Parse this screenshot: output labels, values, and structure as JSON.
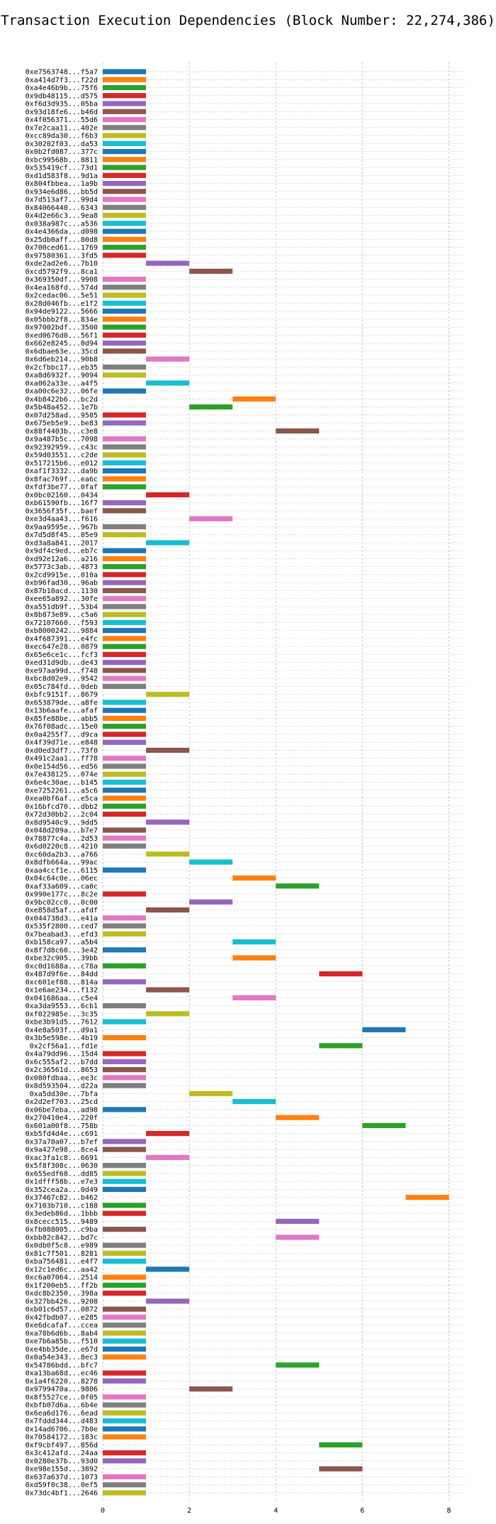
{
  "chart_data": {
    "type": "bar",
    "orientation": "horizontal-gantt",
    "title": "Transaction Execution Dependencies (Block Number: 22,274,386)",
    "xlabel": "",
    "ylabel": "",
    "xlim": [
      0,
      8.4
    ],
    "xticks": [
      0,
      2,
      4,
      6,
      8
    ],
    "grid": true,
    "palette": [
      "#1f77b4",
      "#ff7f0e",
      "#2ca02c",
      "#d62728",
      "#9467bd",
      "#8c564b",
      "#e377c2",
      "#7f7f7f",
      "#bcbd22",
      "#17becf"
    ],
    "transactions": [
      {
        "tx": "0xe7563748...f5a7",
        "start": 0
      },
      {
        "tx": "0xa414d7f3...f22d",
        "start": 0
      },
      {
        "tx": "0xa4e46b9b...75f6",
        "start": 0
      },
      {
        "tx": "0x9db48115...d575",
        "start": 0
      },
      {
        "tx": "0xf6d3d935...05ba",
        "start": 0
      },
      {
        "tx": "0x93d18fe6...b46d",
        "start": 0
      },
      {
        "tx": "0x4f056371...55d6",
        "start": 0
      },
      {
        "tx": "0x7e2caa11...402e",
        "start": 0
      },
      {
        "tx": "0xcc89da30...f6b3",
        "start": 0
      },
      {
        "tx": "0x30202f03...da53",
        "start": 0
      },
      {
        "tx": "0x0b2fd087...377c",
        "start": 0
      },
      {
        "tx": "0xbc99568b...8811",
        "start": 0
      },
      {
        "tx": "0x535419cf...73d1",
        "start": 0
      },
      {
        "tx": "0xd1d583f8...9d1a",
        "start": 0
      },
      {
        "tx": "0x804fbbea...1a9b",
        "start": 0
      },
      {
        "tx": "0x934e6d86...bb5d",
        "start": 0
      },
      {
        "tx": "0x7d513af7...99d4",
        "start": 0
      },
      {
        "tx": "0x84066440...6343",
        "start": 0
      },
      {
        "tx": "0x4d2e66c3...9ea8",
        "start": 0
      },
      {
        "tx": "0x038a987c...a536",
        "start": 0
      },
      {
        "tx": "0x4e4366da...d098",
        "start": 0
      },
      {
        "tx": "0x25db0aff...80d8",
        "start": 0
      },
      {
        "tx": "0x700ced61...1769",
        "start": 0
      },
      {
        "tx": "0x97580361...3fd5",
        "start": 0
      },
      {
        "tx": "0xde2ad2e6...7b10",
        "start": 1
      },
      {
        "tx": "0xcd5792f9...8ca1",
        "start": 2
      },
      {
        "tx": "0x369350df...9908",
        "start": 0
      },
      {
        "tx": "0x4ea168fd...574d",
        "start": 0
      },
      {
        "tx": "0x2cedac06...5e51",
        "start": 0
      },
      {
        "tx": "0x28d046fb...e1f2",
        "start": 0
      },
      {
        "tx": "0x94de9122...5666",
        "start": 0
      },
      {
        "tx": "0x05bbb2f8...834e",
        "start": 0
      },
      {
        "tx": "0x97002bdf...3500",
        "start": 0
      },
      {
        "tx": "0xed0676d0...56f1",
        "start": 0
      },
      {
        "tx": "0x662e8245...0d94",
        "start": 0
      },
      {
        "tx": "0x6dbae63e...35cd",
        "start": 0
      },
      {
        "tx": "0x6d6eb214...90b8",
        "start": 1
      },
      {
        "tx": "0x2cfbbc17...eb35",
        "start": 0
      },
      {
        "tx": "0xa8d6932f...9094",
        "start": 0
      },
      {
        "tx": "0xa062a33e...a4f5",
        "start": 1
      },
      {
        "tx": "0xa00c6e32...06fe",
        "start": 0
      },
      {
        "tx": "0x4b8422b6...bc2d",
        "start": 3
      },
      {
        "tx": "0x5b48a452...1e7b",
        "start": 2
      },
      {
        "tx": "0x07d258ad...9505",
        "start": 0
      },
      {
        "tx": "0x675eb5e9...be83",
        "start": 0
      },
      {
        "tx": "0x88f4403b...c3e8",
        "start": 4
      },
      {
        "tx": "0x9a487b5c...7098",
        "start": 0
      },
      {
        "tx": "0x92392959...c43c",
        "start": 0
      },
      {
        "tx": "0x59d03551...c2de",
        "start": 0
      },
      {
        "tx": "0x517215b6...e012",
        "start": 0
      },
      {
        "tx": "0xaf1f3332...da9b",
        "start": 0
      },
      {
        "tx": "0x8fac769f...ea6c",
        "start": 0
      },
      {
        "tx": "0xfdf3be77...0faf",
        "start": 0
      },
      {
        "tx": "0x0bc02160...0434",
        "start": 1
      },
      {
        "tx": "0xb61590fb...16f7",
        "start": 0
      },
      {
        "tx": "0x3656f35f...baef",
        "start": 0
      },
      {
        "tx": "0xe3d4aa43...f616",
        "start": 2
      },
      {
        "tx": "0x9aa9595e...967b",
        "start": 0
      },
      {
        "tx": "0x7d5d8f45...05e9",
        "start": 0
      },
      {
        "tx": "0xd3a8a841...2017",
        "start": 1
      },
      {
        "tx": "0x9df4c9ed...eb7c",
        "start": 0
      },
      {
        "tx": "0xd92e12a6...a216",
        "start": 0
      },
      {
        "tx": "0x5773c3ab...4873",
        "start": 0
      },
      {
        "tx": "0x2cd9915e...010a",
        "start": 0
      },
      {
        "tx": "0xb96fad30...96ab",
        "start": 0
      },
      {
        "tx": "0x87b10acd...1130",
        "start": 0
      },
      {
        "tx": "0xee65a892...30fe",
        "start": 0
      },
      {
        "tx": "0xa551db9f...53b4",
        "start": 0
      },
      {
        "tx": "0x8b873e89...c5a6",
        "start": 0
      },
      {
        "tx": "0x72107660...f593",
        "start": 0
      },
      {
        "tx": "0xb8000242...9884",
        "start": 0
      },
      {
        "tx": "0x4f687391...e4fc",
        "start": 0
      },
      {
        "tx": "0xec647e28...0879",
        "start": 0
      },
      {
        "tx": "0x65e6ce1c...fcf3",
        "start": 0
      },
      {
        "tx": "0xed31d9db...de43",
        "start": 0
      },
      {
        "tx": "0xe97aa99d...f748",
        "start": 0
      },
      {
        "tx": "0xbc8d02e9...9542",
        "start": 0
      },
      {
        "tx": "0x05c784fd...0deb",
        "start": 0
      },
      {
        "tx": "0xbfc9151f...8679",
        "start": 1
      },
      {
        "tx": "0x653879de...a8fe",
        "start": 0
      },
      {
        "tx": "0x13b6aafe...afaf",
        "start": 0
      },
      {
        "tx": "0x85fe88be...abb5",
        "start": 0
      },
      {
        "tx": "0x76f08adc...15e0",
        "start": 0
      },
      {
        "tx": "0x0a4255f7...d9ca",
        "start": 0
      },
      {
        "tx": "0x4f39d71e...e848",
        "start": 0
      },
      {
        "tx": "0xd0ed3df7...73f0",
        "start": 1
      },
      {
        "tx": "0x491c2aa1...ff78",
        "start": 0
      },
      {
        "tx": "0x0e154d56...ed56",
        "start": 0
      },
      {
        "tx": "0x7e438125...074e",
        "start": 0
      },
      {
        "tx": "0x6e4c30ae...b145",
        "start": 0
      },
      {
        "tx": "0xe7252261...a5c6",
        "start": 0
      },
      {
        "tx": "0xea0bf6af...e5ca",
        "start": 0
      },
      {
        "tx": "0x16bfcd70...dbb2",
        "start": 0
      },
      {
        "tx": "0x72d30bb2...2c04",
        "start": 0
      },
      {
        "tx": "0x8d9540c9...9dd5",
        "start": 1
      },
      {
        "tx": "0x048d209a...b7e7",
        "start": 0
      },
      {
        "tx": "0x78877c4a...2d53",
        "start": 0
      },
      {
        "tx": "0x6d0220c8...4210",
        "start": 0
      },
      {
        "tx": "0xc60da2b3...a766",
        "start": 1
      },
      {
        "tx": "0x8dfb664a...99ac",
        "start": 2
      },
      {
        "tx": "0xaa4ccf1e...6115",
        "start": 0
      },
      {
        "tx": "0x04c64c0e...06ec",
        "start": 3
      },
      {
        "tx": "0xaf33a609...ca0c",
        "start": 4
      },
      {
        "tx": "0x990e177c...8c2e",
        "start": 0
      },
      {
        "tx": "0x9bc02cc0...0c00",
        "start": 2
      },
      {
        "tx": "0xe858d5af...afdf",
        "start": 1
      },
      {
        "tx": "0x044738d3...e41a",
        "start": 0
      },
      {
        "tx": "0x535f2800...ced7",
        "start": 0
      },
      {
        "tx": "0x7beabad3...efd3",
        "start": 0
      },
      {
        "tx": "0xb158ca97...a5b4",
        "start": 3
      },
      {
        "tx": "0x8f7d8c60...3e42",
        "start": 0
      },
      {
        "tx": "0xbe32c905...39bb",
        "start": 3
      },
      {
        "tx": "0xc0d1688a...c78a",
        "start": 0
      },
      {
        "tx": "0x487d9f6e...84dd",
        "start": 5
      },
      {
        "tx": "0xc601ef88...814a",
        "start": 0
      },
      {
        "tx": "0x1e6ae234...f132",
        "start": 1
      },
      {
        "tx": "0x041686aa...c5e4",
        "start": 3
      },
      {
        "tx": "0xa3da9553...6cb1",
        "start": 0
      },
      {
        "tx": "0xf022985e...3c35",
        "start": 1
      },
      {
        "tx": "0xbe3b91d5...7612",
        "start": 0
      },
      {
        "tx": "0x4e8a503f...d9a1",
        "start": 6
      },
      {
        "tx": "0x3b5e598e...4b19",
        "start": 0
      },
      {
        "tx": "0x2cf56a1...fd1e",
        "start": 5
      },
      {
        "tx": "0x4a79dd96...15d4",
        "start": 0
      },
      {
        "tx": "0x6c555af2...b7dd",
        "start": 0
      },
      {
        "tx": "0x2c36561d...8653",
        "start": 0
      },
      {
        "tx": "0x080fdbaa...ee3c",
        "start": 0
      },
      {
        "tx": "0x8d593504...d22a",
        "start": 0
      },
      {
        "tx": "0xa5dd30e...7bfa",
        "start": 2
      },
      {
        "tx": "0x2d2ef703...25cd",
        "start": 3
      },
      {
        "tx": "0x06be7eba...ad98",
        "start": 0
      },
      {
        "tx": "0x270410e4...220f",
        "start": 4
      },
      {
        "tx": "0x601a00f8...758b",
        "start": 6
      },
      {
        "tx": "0xb5fd4d4e...c691",
        "start": 1
      },
      {
        "tx": "0x37a70a07...b7ef",
        "start": 0
      },
      {
        "tx": "0x9a427e98...8ce4",
        "start": 0
      },
      {
        "tx": "0xac3fa1c8...6691",
        "start": 1
      },
      {
        "tx": "0x5f8f308c...0630",
        "start": 0
      },
      {
        "tx": "0x655edf68...dd85",
        "start": 0
      },
      {
        "tx": "0x1dfff58b...e7e3",
        "start": 0
      },
      {
        "tx": "0x352cea2a...0d49",
        "start": 0
      },
      {
        "tx": "0x37467c82...b462",
        "start": 7
      },
      {
        "tx": "0x7103b710...c188",
        "start": 0
      },
      {
        "tx": "0x3edeb86d...1bbb",
        "start": 0
      },
      {
        "tx": "0x8cecc515...9489",
        "start": 4
      },
      {
        "tx": "0xfb088005...c9ba",
        "start": 0
      },
      {
        "tx": "0xbb82c842...bd7c",
        "start": 4
      },
      {
        "tx": "0x0db0f5c8...e989",
        "start": 0
      },
      {
        "tx": "0x81c7f501...8281",
        "start": 0
      },
      {
        "tx": "0xba756481...e4f7",
        "start": 0
      },
      {
        "tx": "0x12c1ed6c...aa42",
        "start": 1
      },
      {
        "tx": "0xc6a07064...2514",
        "start": 0
      },
      {
        "tx": "0x1f200eb5...ff2b",
        "start": 0
      },
      {
        "tx": "0xdc8b2350...398a",
        "start": 0
      },
      {
        "tx": "0x327bb426...9208",
        "start": 1
      },
      {
        "tx": "0xb01c6d57...0872",
        "start": 0
      },
      {
        "tx": "0x42fbdb07...e285",
        "start": 0
      },
      {
        "tx": "0xe6dcafaf...ccea",
        "start": 0
      },
      {
        "tx": "0xa78b6d6b...8ab4",
        "start": 0
      },
      {
        "tx": "0xe7b6a85b...f510",
        "start": 0
      },
      {
        "tx": "0xe4bb35de...e67d",
        "start": 0
      },
      {
        "tx": "0x0a54e343...8ec3",
        "start": 0
      },
      {
        "tx": "0x54786bdd...bfc7",
        "start": 4
      },
      {
        "tx": "0xa13ba68d...ec46",
        "start": 0
      },
      {
        "tx": "0x1a4f6220...8278",
        "start": 0
      },
      {
        "tx": "0x9799470a...9806",
        "start": 2
      },
      {
        "tx": "0x8f5527ce...0f05",
        "start": 0
      },
      {
        "tx": "0xbfb07d6a...6b4e",
        "start": 0
      },
      {
        "tx": "0x6ea6d176...6ead",
        "start": 0
      },
      {
        "tx": "0x7fddd344...d483",
        "start": 0
      },
      {
        "tx": "0x14ad6706...7b0e",
        "start": 0
      },
      {
        "tx": "0x70584172...183c",
        "start": 0
      },
      {
        "tx": "0xf9cbf497...856d",
        "start": 5
      },
      {
        "tx": "0x3c412afd...24aa",
        "start": 0
      },
      {
        "tx": "0x0280e37b...93d0",
        "start": 0
      },
      {
        "tx": "0xe98e155d...3892",
        "start": 5
      },
      {
        "tx": "0x637a637d...1073",
        "start": 0
      },
      {
        "tx": "0xd59f0c38...0ef5",
        "start": 0
      },
      {
        "tx": "0x73dc4bf1...2646",
        "start": 0
      }
    ],
    "duration": 1
  }
}
